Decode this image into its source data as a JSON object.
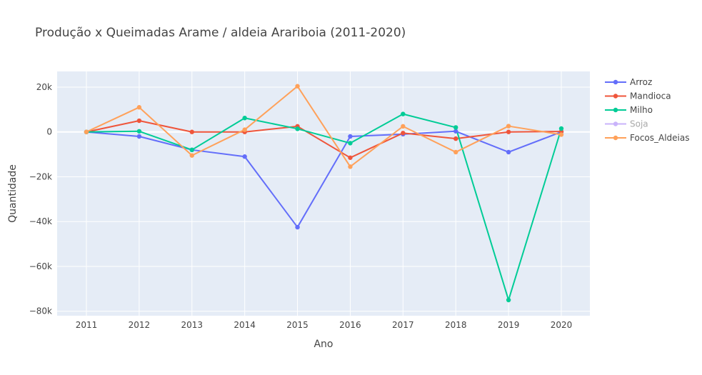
{
  "chart_data": {
    "type": "line",
    "title": "Produção x Queimadas Arame / aldeia Arariboia  (2011-2020)",
    "xlabel": "Ano",
    "ylabel": "Quantidade",
    "categories": [
      "2011",
      "2012",
      "2013",
      "2014",
      "2015",
      "2016",
      "2017",
      "2018",
      "2019",
      "2020"
    ],
    "ylim": [
      -82000,
      27000
    ],
    "y_ticks": [
      20000,
      0,
      -20000,
      -40000,
      -60000,
      -80000
    ],
    "y_tick_labels": [
      "20k",
      "0",
      "−20k",
      "−40k",
      "−60k",
      "−80k"
    ],
    "grid": true,
    "legend_position": "right",
    "background": "#e5ecf6",
    "series": [
      {
        "name": "Arroz",
        "color": "#636efa",
        "values": [
          0,
          -2000,
          -8000,
          -11000,
          -42500,
          -2000,
          -1000,
          300,
          -9000,
          0
        ]
      },
      {
        "name": "Mandioca",
        "color": "#ef553b",
        "values": [
          0,
          5000,
          0,
          0,
          2500,
          -11500,
          -500,
          -3000,
          0,
          200
        ]
      },
      {
        "name": "Milho",
        "color": "#00cc96",
        "values": [
          0,
          300,
          -8000,
          6200,
          1400,
          -5000,
          8000,
          2000,
          -75000,
          1500
        ]
      },
      {
        "name": "Soja",
        "color": "#c9b3fb",
        "legend_muted": true,
        "values": [
          null,
          null,
          null,
          null,
          null,
          null,
          null,
          null,
          null,
          null
        ]
      },
      {
        "name": "Focos_Aldeias",
        "color": "#ffa15a",
        "values": [
          0,
          11000,
          -10500,
          1000,
          20400,
          -15500,
          2500,
          -9000,
          2600,
          -1200
        ]
      }
    ]
  }
}
